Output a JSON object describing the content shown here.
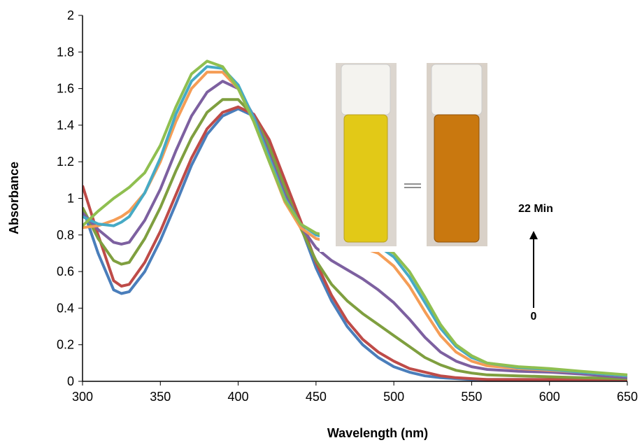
{
  "chart_data": {
    "type": "line",
    "x_label": "Wavelength (nm)",
    "y_label": "Absorbance",
    "annotations": [
      "22 Min",
      "0"
    ],
    "xlim": [
      300,
      650
    ],
    "xticks": [
      300,
      350,
      400,
      450,
      500,
      550,
      600,
      650
    ],
    "ylim": [
      0,
      2
    ],
    "yticks": [
      0,
      0.2,
      0.4,
      0.6,
      0.8,
      1,
      1.2,
      1.4,
      1.6,
      1.8,
      2
    ],
    "x": [
      300,
      310,
      320,
      325,
      330,
      340,
      350,
      360,
      370,
      380,
      390,
      400,
      410,
      420,
      430,
      440,
      450,
      460,
      470,
      480,
      490,
      500,
      510,
      520,
      530,
      540,
      550,
      560,
      580,
      600,
      620,
      650
    ],
    "series": [
      {
        "color": "#4a7ebb",
        "values": [
          0.95,
          0.7,
          0.5,
          0.48,
          0.49,
          0.6,
          0.77,
          0.97,
          1.18,
          1.35,
          1.45,
          1.49,
          1.45,
          1.3,
          1.08,
          0.85,
          0.62,
          0.44,
          0.3,
          0.2,
          0.13,
          0.08,
          0.05,
          0.03,
          0.02,
          0.015,
          0.01,
          0.01,
          0.01,
          0.01,
          0.01,
          0.01
        ]
      },
      {
        "color": "#be4b48",
        "values": [
          1.07,
          0.8,
          0.55,
          0.52,
          0.53,
          0.65,
          0.82,
          1.02,
          1.22,
          1.38,
          1.47,
          1.5,
          1.46,
          1.32,
          1.1,
          0.88,
          0.65,
          0.47,
          0.33,
          0.23,
          0.16,
          0.11,
          0.07,
          0.05,
          0.03,
          0.02,
          0.015,
          0.01,
          0.01,
          0.01,
          0.01,
          0.01
        ]
      },
      {
        "color": "#7f9f3f",
        "values": [
          0.95,
          0.78,
          0.66,
          0.64,
          0.65,
          0.78,
          0.95,
          1.15,
          1.33,
          1.47,
          1.54,
          1.54,
          1.45,
          1.28,
          1.06,
          0.84,
          0.66,
          0.53,
          0.44,
          0.37,
          0.31,
          0.25,
          0.19,
          0.13,
          0.09,
          0.06,
          0.045,
          0.035,
          0.03,
          0.025,
          0.02,
          0.015
        ]
      },
      {
        "color": "#7d60a0",
        "values": [
          0.92,
          0.83,
          0.76,
          0.75,
          0.76,
          0.88,
          1.05,
          1.26,
          1.45,
          1.58,
          1.64,
          1.6,
          1.45,
          1.24,
          1.02,
          0.85,
          0.73,
          0.66,
          0.61,
          0.56,
          0.5,
          0.43,
          0.34,
          0.24,
          0.16,
          0.11,
          0.08,
          0.065,
          0.055,
          0.05,
          0.04,
          0.02
        ]
      },
      {
        "color": "#f59d56",
        "values": [
          0.84,
          0.85,
          0.88,
          0.9,
          0.93,
          1.03,
          1.2,
          1.42,
          1.6,
          1.69,
          1.69,
          1.6,
          1.42,
          1.2,
          0.98,
          0.84,
          0.78,
          0.76,
          0.75,
          0.73,
          0.7,
          0.63,
          0.52,
          0.38,
          0.25,
          0.16,
          0.11,
          0.085,
          0.07,
          0.06,
          0.05,
          0.03
        ]
      },
      {
        "color": "#46aac5",
        "values": [
          0.9,
          0.86,
          0.85,
          0.87,
          0.9,
          1.03,
          1.22,
          1.46,
          1.64,
          1.72,
          1.71,
          1.62,
          1.44,
          1.22,
          1.0,
          0.86,
          0.8,
          0.78,
          0.77,
          0.76,
          0.74,
          0.68,
          0.57,
          0.43,
          0.29,
          0.19,
          0.13,
          0.1,
          0.075,
          0.065,
          0.05,
          0.03
        ]
      },
      {
        "color": "#8fbf50",
        "values": [
          0.85,
          0.93,
          1.0,
          1.03,
          1.06,
          1.14,
          1.29,
          1.5,
          1.68,
          1.75,
          1.72,
          1.6,
          1.42,
          1.2,
          0.99,
          0.86,
          0.81,
          0.79,
          0.78,
          0.77,
          0.75,
          0.7,
          0.6,
          0.46,
          0.31,
          0.2,
          0.14,
          0.1,
          0.08,
          0.07,
          0.055,
          0.035
        ]
      }
    ]
  }
}
